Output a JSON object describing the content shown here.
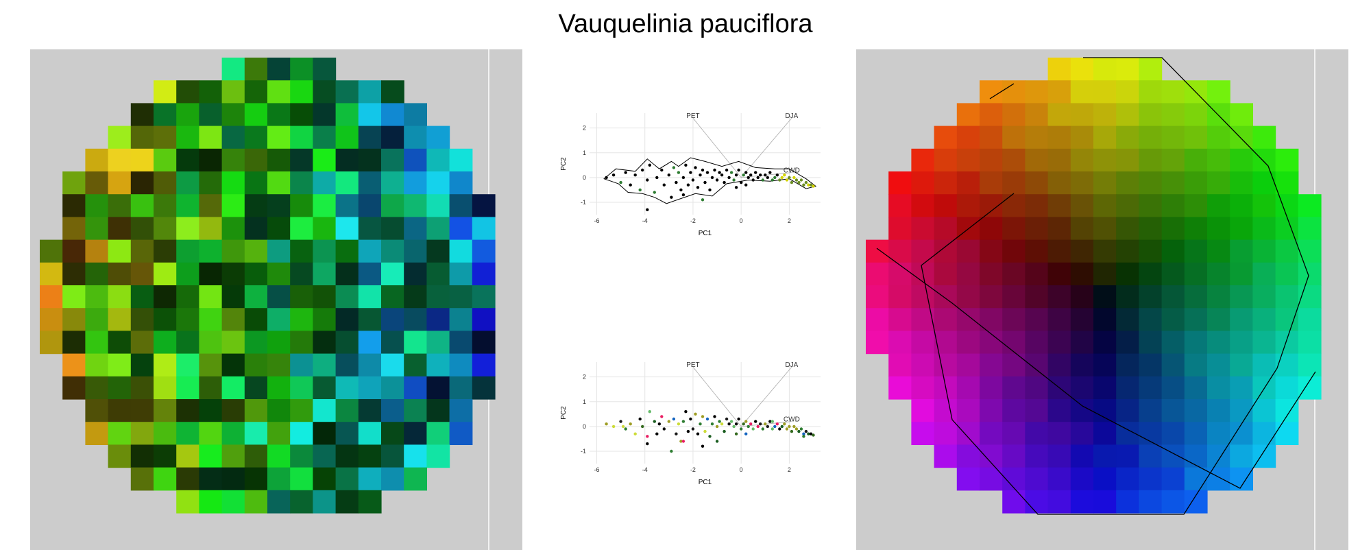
{
  "title": "Vauquelinia pauciflora",
  "pca_plots": [
    {
      "id": "pca-top",
      "xlabel": "PC1",
      "ylabel": "PC2",
      "x_ticks": [
        "-6",
        "-4",
        "-2",
        "0",
        "2"
      ],
      "y_ticks": [
        "-1",
        "0",
        "1",
        "2"
      ],
      "vector_labels": [
        "PET",
        "DJA",
        "CWD"
      ]
    },
    {
      "id": "pca-bottom",
      "xlabel": "PC1",
      "ylabel": "PC2",
      "x_ticks": [
        "-6",
        "-4",
        "-2",
        "0",
        "2"
      ],
      "y_ticks": [
        "-1",
        "0",
        "1",
        "2"
      ],
      "vector_labels": [
        "PET",
        "DJA",
        "CWD"
      ]
    }
  ],
  "chart_data": [
    {
      "type": "heatmap",
      "panel": "left map",
      "background": "#cccccc"
    },
    {
      "type": "scatter",
      "panel": "pca-top",
      "xlabel": "PC1",
      "ylabel": "PC2",
      "xlim": [
        -6.3,
        3.3
      ],
      "ylim": [
        -1.5,
        2.6
      ],
      "x_ticks": [
        -6,
        -4,
        -2,
        0,
        2
      ],
      "y_ticks": [
        -1,
        0,
        1,
        2
      ],
      "vectors": [
        {
          "label": "PET",
          "x": -2.0,
          "y": 2.4
        },
        {
          "label": "DJA",
          "x": 2.1,
          "y": 2.4
        },
        {
          "label": "CWD",
          "x": 2.1,
          "y": 0.2
        }
      ],
      "hull_vertices": [
        [
          -5.7,
          -0.05
        ],
        [
          -5.2,
          0.35
        ],
        [
          -4.4,
          0.25
        ],
        [
          -3.9,
          0.75
        ],
        [
          -3.4,
          0.35
        ],
        [
          -2.9,
          0.65
        ],
        [
          -2.6,
          0.45
        ],
        [
          -2.1,
          0.8
        ],
        [
          -1.5,
          0.65
        ],
        [
          -0.8,
          0.45
        ],
        [
          -0.1,
          0.65
        ],
        [
          0.6,
          0.4
        ],
        [
          1.4,
          0.35
        ],
        [
          2.0,
          0.35
        ],
        [
          2.7,
          -0.05
        ],
        [
          3.1,
          -0.35
        ],
        [
          2.7,
          -0.45
        ],
        [
          2.0,
          -0.05
        ],
        [
          1.2,
          -0.15
        ],
        [
          0.3,
          -0.1
        ],
        [
          -0.6,
          -0.25
        ],
        [
          -1.2,
          -0.75
        ],
        [
          -1.9,
          -0.65
        ],
        [
          -2.5,
          -0.85
        ],
        [
          -3.1,
          -1.05
        ],
        [
          -3.6,
          -0.8
        ],
        [
          -4.1,
          -0.65
        ],
        [
          -4.7,
          -0.6
        ],
        [
          -5.1,
          -0.25
        ]
      ],
      "points": [
        [
          -5.6,
          0.0
        ],
        [
          -5.3,
          0.1
        ],
        [
          -5.0,
          -0.2
        ],
        [
          -4.8,
          0.2
        ],
        [
          -4.6,
          -0.3
        ],
        [
          -4.4,
          0.1
        ],
        [
          -4.2,
          -0.5
        ],
        [
          -4.1,
          0.3
        ],
        [
          -3.9,
          -0.1
        ],
        [
          -3.8,
          0.5
        ],
        [
          -3.6,
          -0.6
        ],
        [
          -3.5,
          0.0
        ],
        [
          -3.3,
          0.3
        ],
        [
          -3.2,
          -0.3
        ],
        [
          -3.0,
          0.1
        ],
        [
          -2.9,
          -0.8
        ],
        [
          -2.8,
          0.4
        ],
        [
          -2.7,
          -0.2
        ],
        [
          -2.6,
          0.2
        ],
        [
          -2.5,
          -0.5
        ],
        [
          -2.4,
          0.0
        ],
        [
          -2.3,
          0.5
        ],
        [
          -2.2,
          -0.3
        ],
        [
          -2.1,
          0.2
        ],
        [
          -2.0,
          -0.1
        ],
        [
          -1.9,
          0.4
        ],
        [
          -1.8,
          -0.4
        ],
        [
          -1.7,
          0.1
        ],
        [
          -1.6,
          0.3
        ],
        [
          -1.5,
          -0.2
        ],
        [
          -1.4,
          0.2
        ],
        [
          -1.3,
          -0.5
        ],
        [
          -1.2,
          0.0
        ],
        [
          -1.1,
          0.3
        ],
        [
          -1.0,
          -0.1
        ],
        [
          -0.9,
          0.2
        ],
        [
          -0.8,
          0.1
        ],
        [
          -0.7,
          -0.2
        ],
        [
          -0.6,
          0.3
        ],
        [
          -0.5,
          0.0
        ],
        [
          -0.4,
          0.2
        ],
        [
          -0.3,
          -0.1
        ],
        [
          -0.2,
          0.1
        ],
        [
          -0.1,
          0.3
        ],
        [
          0.0,
          -0.2
        ],
        [
          0.1,
          0.1
        ],
        [
          0.2,
          0.2
        ],
        [
          0.3,
          0.0
        ],
        [
          0.4,
          0.1
        ],
        [
          0.5,
          -0.1
        ],
        [
          0.6,
          0.2
        ],
        [
          0.7,
          0.0
        ],
        [
          0.8,
          0.1
        ],
        [
          0.9,
          -0.1
        ],
        [
          1.0,
          0.1
        ],
        [
          1.1,
          0.0
        ],
        [
          1.2,
          0.2
        ],
        [
          1.3,
          -0.1
        ],
        [
          1.4,
          0.0
        ],
        [
          1.5,
          0.1
        ],
        [
          1.6,
          -0.1
        ],
        [
          1.7,
          0.0
        ],
        [
          1.8,
          0.1
        ],
        [
          1.9,
          -0.1
        ],
        [
          2.0,
          0.0
        ],
        [
          2.1,
          -0.2
        ],
        [
          2.2,
          0.0
        ],
        [
          2.3,
          -0.1
        ],
        [
          2.4,
          -0.2
        ],
        [
          2.5,
          -0.1
        ],
        [
          2.6,
          -0.3
        ],
        [
          2.7,
          -0.2
        ],
        [
          2.8,
          -0.3
        ],
        [
          2.9,
          -0.3
        ],
        [
          3.0,
          -0.35
        ],
        [
          -3.9,
          -1.3
        ],
        [
          -1.6,
          -0.9
        ],
        [
          -0.2,
          -0.4
        ],
        [
          0.2,
          -0.3
        ],
        [
          -2.4,
          -0.7
        ]
      ]
    },
    {
      "type": "scatter",
      "panel": "pca-bottom",
      "xlabel": "PC1",
      "ylabel": "PC2",
      "xlim": [
        -6.3,
        3.3
      ],
      "ylim": [
        -1.5,
        2.6
      ],
      "x_ticks": [
        -6,
        -4,
        -2,
        0,
        2
      ],
      "y_ticks": [
        -1,
        0,
        1,
        2
      ],
      "vectors": [
        {
          "label": "PET",
          "x": -2.0,
          "y": 2.4
        },
        {
          "label": "DJA",
          "x": 2.1,
          "y": 2.4
        },
        {
          "label": "CWD",
          "x": 2.1,
          "y": 0.2
        }
      ],
      "points": [
        [
          -5.6,
          0.1
        ],
        [
          -5.3,
          0.0
        ],
        [
          -5.0,
          0.2
        ],
        [
          -4.8,
          -0.1
        ],
        [
          -4.6,
          0.1
        ],
        [
          -4.4,
          -0.3
        ],
        [
          -4.2,
          0.3
        ],
        [
          -4.1,
          0.0
        ],
        [
          -3.9,
          -0.4
        ],
        [
          -3.8,
          0.6
        ],
        [
          -3.6,
          0.2
        ],
        [
          -3.5,
          -0.3
        ],
        [
          -3.3,
          0.4
        ],
        [
          -3.2,
          -0.1
        ],
        [
          -3.0,
          0.2
        ],
        [
          -2.9,
          -1.0
        ],
        [
          -2.8,
          0.3
        ],
        [
          -2.7,
          -0.3
        ],
        [
          -2.6,
          0.1
        ],
        [
          -2.5,
          -0.6
        ],
        [
          -2.4,
          0.2
        ],
        [
          -2.3,
          0.6
        ],
        [
          -2.2,
          -0.2
        ],
        [
          -2.1,
          0.3
        ],
        [
          -2.0,
          -0.1
        ],
        [
          -1.9,
          0.5
        ],
        [
          -1.8,
          -0.3
        ],
        [
          -1.7,
          0.1
        ],
        [
          -1.6,
          0.4
        ],
        [
          -1.5,
          -0.2
        ],
        [
          -1.4,
          0.3
        ],
        [
          -1.3,
          -0.4
        ],
        [
          -1.2,
          0.1
        ],
        [
          -1.1,
          0.4
        ],
        [
          -1.0,
          0.0
        ],
        [
          -0.9,
          0.2
        ],
        [
          -0.8,
          0.1
        ],
        [
          -0.7,
          -0.2
        ],
        [
          -0.6,
          0.3
        ],
        [
          -0.5,
          0.1
        ],
        [
          -0.4,
          0.2
        ],
        [
          -0.3,
          0.0
        ],
        [
          -0.2,
          0.1
        ],
        [
          -0.1,
          0.3
        ],
        [
          0.0,
          -0.1
        ],
        [
          0.1,
          0.1
        ],
        [
          0.2,
          0.2
        ],
        [
          0.3,
          0.0
        ],
        [
          0.4,
          0.1
        ],
        [
          0.5,
          -0.1
        ],
        [
          0.6,
          0.2
        ],
        [
          0.7,
          0.0
        ],
        [
          0.8,
          0.1
        ],
        [
          0.9,
          -0.1
        ],
        [
          1.0,
          0.1
        ],
        [
          1.1,
          0.0
        ],
        [
          1.2,
          0.2
        ],
        [
          1.3,
          -0.1
        ],
        [
          1.4,
          0.0
        ],
        [
          1.5,
          0.1
        ],
        [
          1.6,
          -0.1
        ],
        [
          1.7,
          0.0
        ],
        [
          1.8,
          0.1
        ],
        [
          1.9,
          -0.1
        ],
        [
          2.0,
          0.0
        ],
        [
          2.1,
          -0.2
        ],
        [
          2.2,
          0.0
        ],
        [
          2.3,
          -0.1
        ],
        [
          2.4,
          -0.2
        ],
        [
          2.5,
          -0.1
        ],
        [
          2.6,
          -0.3
        ],
        [
          2.7,
          -0.2
        ],
        [
          2.8,
          -0.3
        ],
        [
          2.9,
          -0.3
        ],
        [
          3.0,
          -0.35
        ],
        [
          -3.9,
          -0.7
        ],
        [
          -1.6,
          -0.8
        ],
        [
          -0.2,
          -0.3
        ],
        [
          0.2,
          -0.3
        ],
        [
          -2.4,
          -0.6
        ],
        [
          -4.9,
          0.0
        ],
        [
          -3.4,
          0.1
        ],
        [
          -1.0,
          -0.6
        ],
        [
          1.3,
          0.2
        ],
        [
          2.6,
          -0.4
        ]
      ]
    },
    {
      "type": "heatmap",
      "panel": "right map",
      "background": "#cccccc"
    }
  ]
}
